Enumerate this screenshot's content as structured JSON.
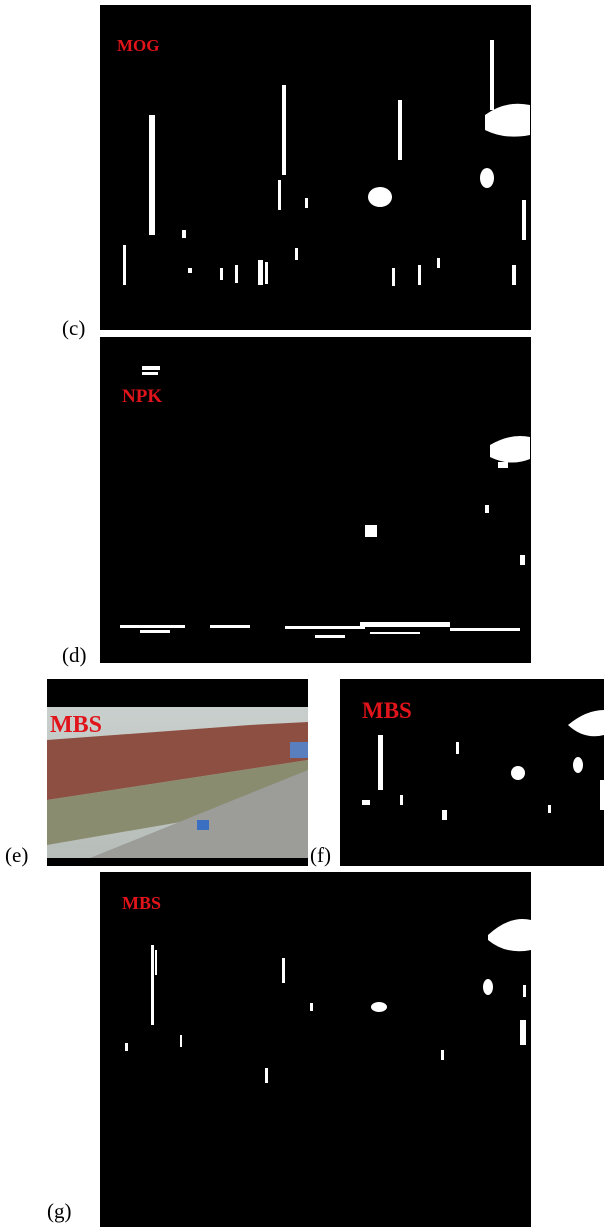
{
  "panels": [
    {
      "label": "(c)",
      "overlay": "MOG"
    },
    {
      "label": "(d)",
      "overlay": "NPK"
    },
    {
      "label": "(e)",
      "overlay": "MBS"
    },
    {
      "label": "(f)",
      "overlay": "MBS"
    },
    {
      "label": "(g)",
      "overlay": "MBS"
    }
  ]
}
